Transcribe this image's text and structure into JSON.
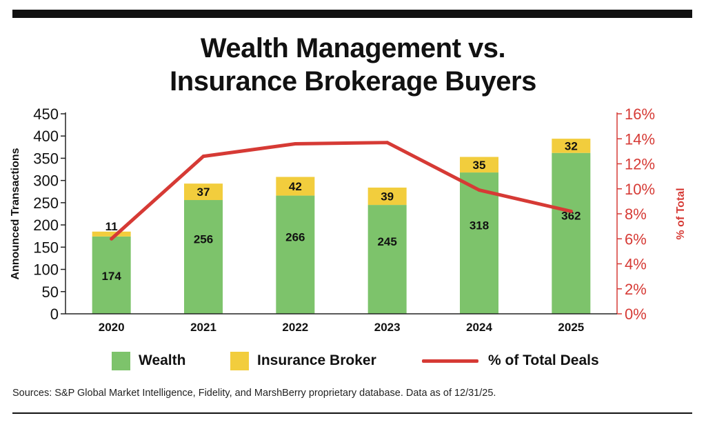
{
  "title": {
    "line1": "Wealth Management vs.",
    "line2": "Insurance Brokerage Buyers"
  },
  "colors": {
    "wealth": "#7dc36b",
    "insurance": "#f2cd3d",
    "line": "#d63a35",
    "axis": "#222222",
    "right_axis": "#d63a35"
  },
  "chart_data": {
    "type": "bar",
    "stacked": true,
    "categories": [
      "2020",
      "2021",
      "2022",
      "2023",
      "2024",
      "2025"
    ],
    "series": [
      {
        "name": "Wealth",
        "values": [
          174,
          256,
          266,
          245,
          318,
          362
        ]
      },
      {
        "name": "Insurance Broker",
        "values": [
          11,
          37,
          42,
          39,
          35,
          32
        ]
      }
    ],
    "line_series": {
      "name": "% of Total Deals",
      "axis": "right",
      "values": [
        6.0,
        12.6,
        13.6,
        13.7,
        9.9,
        8.2
      ]
    },
    "ylabel": "Announced Transactions",
    "ylim": [
      0,
      450
    ],
    "yticks": [
      0,
      50,
      100,
      150,
      200,
      250,
      300,
      350,
      400,
      450
    ],
    "y2label": "% of Total",
    "y2lim": [
      0,
      16
    ],
    "y2ticks": [
      "0%",
      "2%",
      "4%",
      "6%",
      "8%",
      "10%",
      "12%",
      "14%",
      "16%"
    ],
    "legend_position": "bottom"
  },
  "legend": [
    {
      "label": "Wealth",
      "icon": "swatch"
    },
    {
      "label": "Insurance Broker",
      "icon": "swatch"
    },
    {
      "label": "% of Total Deals",
      "icon": "line"
    }
  ],
  "source": "Sources: S&P Global Market Intelligence, Fidelity, and MarshBerry proprietary database. Data as of 12/31/25."
}
